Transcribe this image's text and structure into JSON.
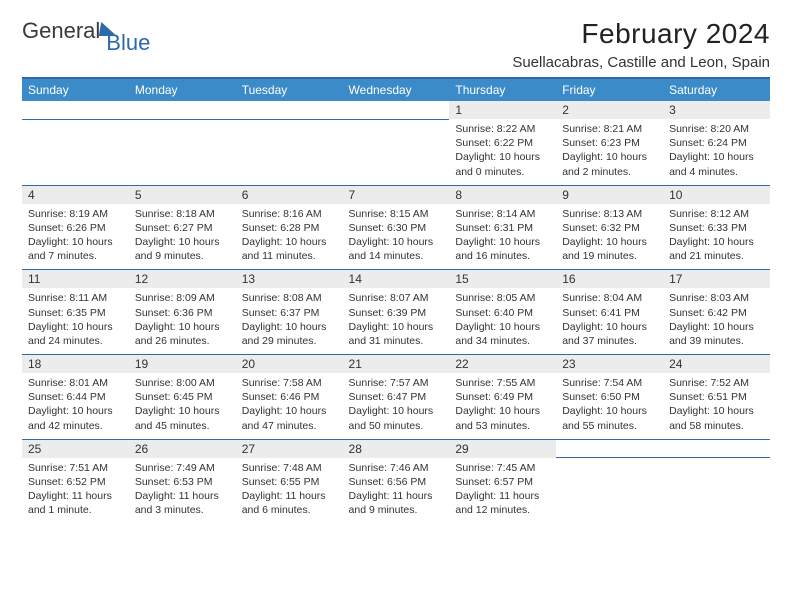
{
  "brand": {
    "part1": "General",
    "part2": "Blue"
  },
  "title": "February 2024",
  "location": "Suellacabras, Castille and Leon, Spain",
  "header_bg": "#3b8bc9",
  "accent": "#2d6aa8",
  "day_bg": "#ececec",
  "weekdays": [
    "Sunday",
    "Monday",
    "Tuesday",
    "Wednesday",
    "Thursday",
    "Friday",
    "Saturday"
  ],
  "first_weekday_index": 4,
  "days": [
    {
      "n": 1,
      "sr": "8:22 AM",
      "ss": "6:22 PM",
      "dl": "10 hours and 0 minutes."
    },
    {
      "n": 2,
      "sr": "8:21 AM",
      "ss": "6:23 PM",
      "dl": "10 hours and 2 minutes."
    },
    {
      "n": 3,
      "sr": "8:20 AM",
      "ss": "6:24 PM",
      "dl": "10 hours and 4 minutes."
    },
    {
      "n": 4,
      "sr": "8:19 AM",
      "ss": "6:26 PM",
      "dl": "10 hours and 7 minutes."
    },
    {
      "n": 5,
      "sr": "8:18 AM",
      "ss": "6:27 PM",
      "dl": "10 hours and 9 minutes."
    },
    {
      "n": 6,
      "sr": "8:16 AM",
      "ss": "6:28 PM",
      "dl": "10 hours and 11 minutes."
    },
    {
      "n": 7,
      "sr": "8:15 AM",
      "ss": "6:30 PM",
      "dl": "10 hours and 14 minutes."
    },
    {
      "n": 8,
      "sr": "8:14 AM",
      "ss": "6:31 PM",
      "dl": "10 hours and 16 minutes."
    },
    {
      "n": 9,
      "sr": "8:13 AM",
      "ss": "6:32 PM",
      "dl": "10 hours and 19 minutes."
    },
    {
      "n": 10,
      "sr": "8:12 AM",
      "ss": "6:33 PM",
      "dl": "10 hours and 21 minutes."
    },
    {
      "n": 11,
      "sr": "8:11 AM",
      "ss": "6:35 PM",
      "dl": "10 hours and 24 minutes."
    },
    {
      "n": 12,
      "sr": "8:09 AM",
      "ss": "6:36 PM",
      "dl": "10 hours and 26 minutes."
    },
    {
      "n": 13,
      "sr": "8:08 AM",
      "ss": "6:37 PM",
      "dl": "10 hours and 29 minutes."
    },
    {
      "n": 14,
      "sr": "8:07 AM",
      "ss": "6:39 PM",
      "dl": "10 hours and 31 minutes."
    },
    {
      "n": 15,
      "sr": "8:05 AM",
      "ss": "6:40 PM",
      "dl": "10 hours and 34 minutes."
    },
    {
      "n": 16,
      "sr": "8:04 AM",
      "ss": "6:41 PM",
      "dl": "10 hours and 37 minutes."
    },
    {
      "n": 17,
      "sr": "8:03 AM",
      "ss": "6:42 PM",
      "dl": "10 hours and 39 minutes."
    },
    {
      "n": 18,
      "sr": "8:01 AM",
      "ss": "6:44 PM",
      "dl": "10 hours and 42 minutes."
    },
    {
      "n": 19,
      "sr": "8:00 AM",
      "ss": "6:45 PM",
      "dl": "10 hours and 45 minutes."
    },
    {
      "n": 20,
      "sr": "7:58 AM",
      "ss": "6:46 PM",
      "dl": "10 hours and 47 minutes."
    },
    {
      "n": 21,
      "sr": "7:57 AM",
      "ss": "6:47 PM",
      "dl": "10 hours and 50 minutes."
    },
    {
      "n": 22,
      "sr": "7:55 AM",
      "ss": "6:49 PM",
      "dl": "10 hours and 53 minutes."
    },
    {
      "n": 23,
      "sr": "7:54 AM",
      "ss": "6:50 PM",
      "dl": "10 hours and 55 minutes."
    },
    {
      "n": 24,
      "sr": "7:52 AM",
      "ss": "6:51 PM",
      "dl": "10 hours and 58 minutes."
    },
    {
      "n": 25,
      "sr": "7:51 AM",
      "ss": "6:52 PM",
      "dl": "11 hours and 1 minute."
    },
    {
      "n": 26,
      "sr": "7:49 AM",
      "ss": "6:53 PM",
      "dl": "11 hours and 3 minutes."
    },
    {
      "n": 27,
      "sr": "7:48 AM",
      "ss": "6:55 PM",
      "dl": "11 hours and 6 minutes."
    },
    {
      "n": 28,
      "sr": "7:46 AM",
      "ss": "6:56 PM",
      "dl": "11 hours and 9 minutes."
    },
    {
      "n": 29,
      "sr": "7:45 AM",
      "ss": "6:57 PM",
      "dl": "11 hours and 12 minutes."
    }
  ],
  "labels": {
    "sunrise": "Sunrise:",
    "sunset": "Sunset:",
    "daylight": "Daylight:"
  }
}
